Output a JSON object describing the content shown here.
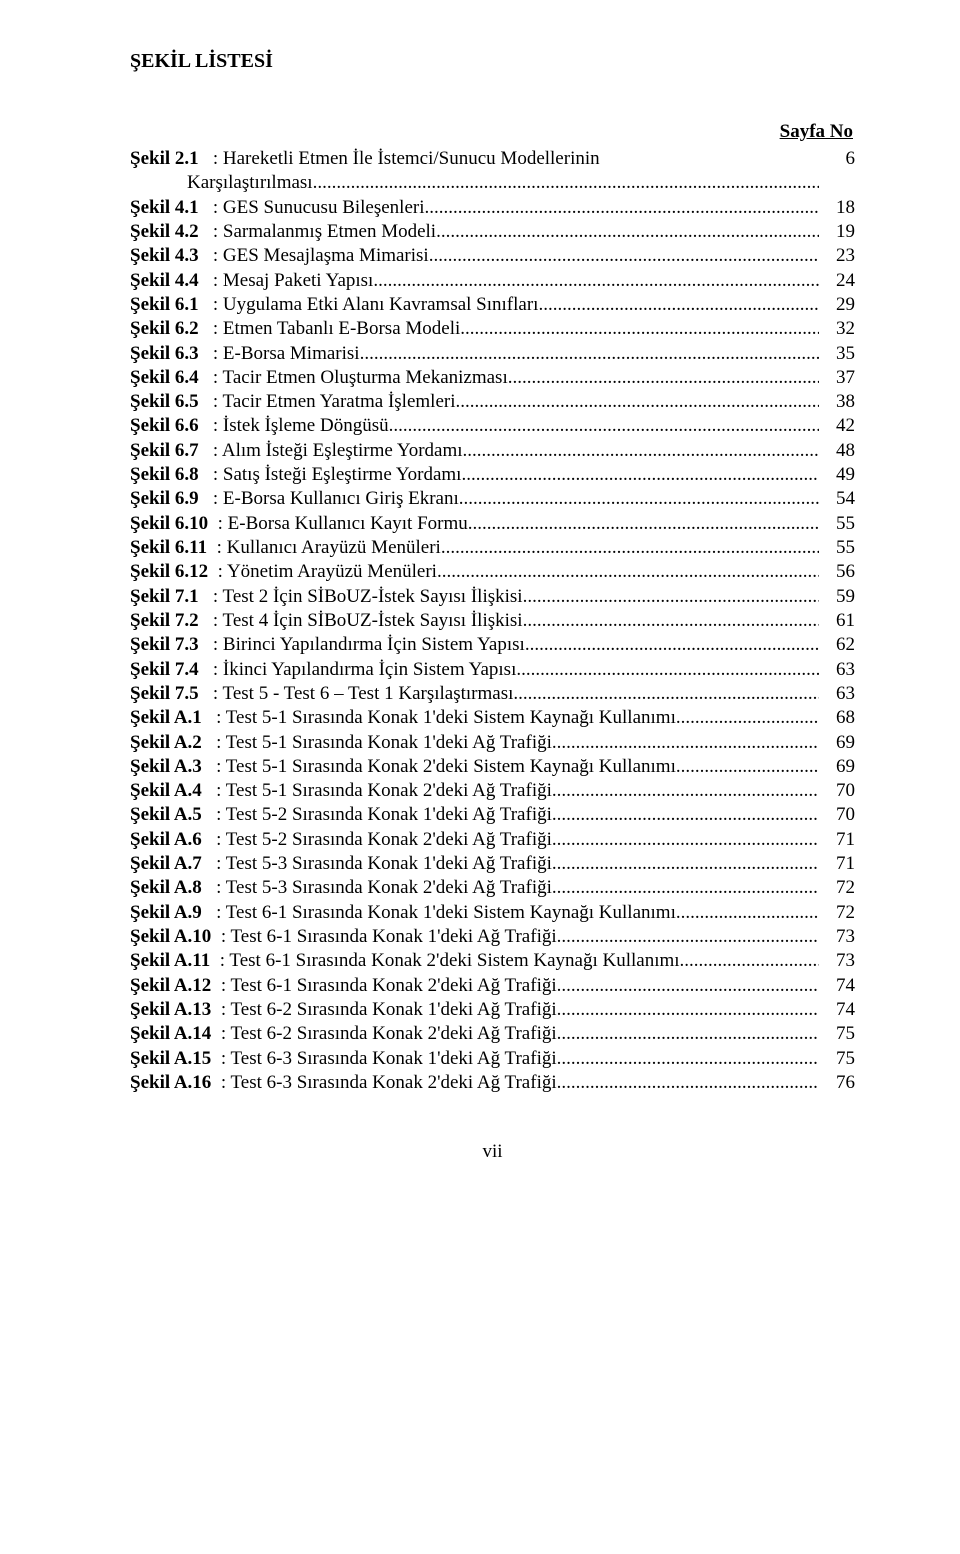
{
  "title": "ŞEKİL LİSTESİ",
  "page_no_header": "Sayfa No",
  "footer": "vii",
  "label_pad_width": 10,
  "leader_char": ".",
  "leader_repeat": 120,
  "entries": [
    {
      "label": "Şekil 2.1",
      "desc": ": Hareketli Etmen İle İstemci/Sunucu Modellerinin",
      "page": "6",
      "cont": "Karşılaştırılması",
      "cont_leader": true,
      "cont_page": ""
    },
    {
      "label": "Şekil 4.1",
      "desc": ": GES Sunucusu Bileşenleri",
      "page": "18"
    },
    {
      "label": "Şekil 4.2",
      "desc": ": Sarmalanmış Etmen Modeli",
      "page": "19"
    },
    {
      "label": "Şekil 4.3",
      "desc": ": GES Mesajlaşma Mimarisi",
      "page": "23"
    },
    {
      "label": "Şekil 4.4",
      "desc": ": Mesaj Paketi Yapısı",
      "page": "24"
    },
    {
      "label": "Şekil 6.1",
      "desc": ": Uygulama Etki Alanı Kavramsal Sınıfları",
      "page": "29"
    },
    {
      "label": "Şekil 6.2",
      "desc": ": Etmen Tabanlı E-Borsa Modeli",
      "page": "32"
    },
    {
      "label": "Şekil 6.3",
      "desc": ": E-Borsa Mimarisi",
      "page": "35"
    },
    {
      "label": "Şekil 6.4",
      "desc": ": Tacir Etmen Oluşturma Mekanizması",
      "page": "37"
    },
    {
      "label": "Şekil 6.5",
      "desc": ": Tacir Etmen Yaratma İşlemleri",
      "page": "38"
    },
    {
      "label": "Şekil 6.6",
      "desc": ": İstek İşleme Döngüsü",
      "page": "42"
    },
    {
      "label": "Şekil 6.7",
      "desc": ": Alım İsteği Eşleştirme Yordamı",
      "page": "48"
    },
    {
      "label": "Şekil 6.8",
      "desc": ": Satış İsteği Eşleştirme Yordamı",
      "page": "49"
    },
    {
      "label": "Şekil 6.9",
      "desc": ": E-Borsa Kullanıcı Giriş Ekranı",
      "page": "54"
    },
    {
      "label": "Şekil 6.10",
      "desc": ": E-Borsa Kullanıcı Kayıt Formu",
      "page": "55"
    },
    {
      "label": "Şekil 6.11",
      "desc": ": Kullanıcı Arayüzü Menüleri",
      "page": "55"
    },
    {
      "label": "Şekil 6.12",
      "desc": ": Yönetim Arayüzü Menüleri",
      "page": "56"
    },
    {
      "label": "Şekil 7.1",
      "desc": ": Test 2 İçin SİBoUZ-İstek Sayısı İlişkisi",
      "page": "59"
    },
    {
      "label": "Şekil 7.2",
      "desc": ": Test 4 İçin SİBoUZ-İstek Sayısı İlişkisi",
      "page": "61"
    },
    {
      "label": "Şekil 7.3",
      "desc": ": Birinci Yapılandırma İçin Sistem Yapısı",
      "page": "62"
    },
    {
      "label": "Şekil 7.4",
      "desc": ": İkinci Yapılandırma İçin Sistem Yapısı",
      "page": "63"
    },
    {
      "label": "Şekil 7.5",
      "desc": ": Test 5 - Test 6 – Test 1 Karşılaştırması",
      "page": "63"
    },
    {
      "label": "Şekil A.1",
      "desc": ": Test 5-1 Sırasında Konak 1'deki Sistem Kaynağı Kullanımı",
      "page": "68"
    },
    {
      "label": "Şekil A.2",
      "desc": ": Test 5-1 Sırasında Konak 1'deki Ağ Trafiği",
      "page": "69"
    },
    {
      "label": "Şekil A.3",
      "desc": ": Test 5-1 Sırasında Konak 2'deki Sistem Kaynağı Kullanımı",
      "page": "69"
    },
    {
      "label": "Şekil A.4",
      "desc": ": Test 5-1 Sırasında Konak 2'deki Ağ Trafiği",
      "page": "70"
    },
    {
      "label": "Şekil A.5",
      "desc": ": Test 5-2 Sırasında Konak 1'deki Ağ Trafiği",
      "page": "70"
    },
    {
      "label": "Şekil A.6",
      "desc": ": Test 5-2 Sırasında Konak 2'deki Ağ Trafiği",
      "page": "71"
    },
    {
      "label": "Şekil A.7",
      "desc": ": Test 5-3 Sırasında Konak 1'deki Ağ Trafiği",
      "page": "71"
    },
    {
      "label": "Şekil A.8",
      "desc": ": Test 5-3 Sırasında Konak 2'deki Ağ Trafiği",
      "page": "72"
    },
    {
      "label": "Şekil A.9",
      "desc": ": Test 6-1 Sırasında Konak 1'deki Sistem Kaynağı Kullanımı",
      "page": "72"
    },
    {
      "label": "Şekil A.10",
      "desc": ": Test 6-1 Sırasında Konak 1'deki Ağ Trafiği",
      "page": "73"
    },
    {
      "label": "Şekil A.11",
      "desc": ": Test 6-1 Sırasında Konak 2'deki Sistem Kaynağı Kullanımı",
      "page": "73"
    },
    {
      "label": "Şekil A.12",
      "desc": ": Test 6-1 Sırasında Konak 2'deki Ağ Trafiği",
      "page": "74"
    },
    {
      "label": "Şekil A.13",
      "desc": ": Test 6-2 Sırasında Konak 1'deki Ağ Trafiği",
      "page": "74"
    },
    {
      "label": "Şekil A.14",
      "desc": ": Test 6-2 Sırasında Konak 2'deki Ağ Trafiği",
      "page": "75"
    },
    {
      "label": "Şekil A.15",
      "desc": ": Test 6-3 Sırasında Konak 1'deki Ağ Trafiği",
      "page": "75"
    },
    {
      "label": "Şekil A.16",
      "desc": ": Test 6-3 Sırasında Konak 2'deki Ağ Trafiği",
      "page": "76"
    }
  ]
}
